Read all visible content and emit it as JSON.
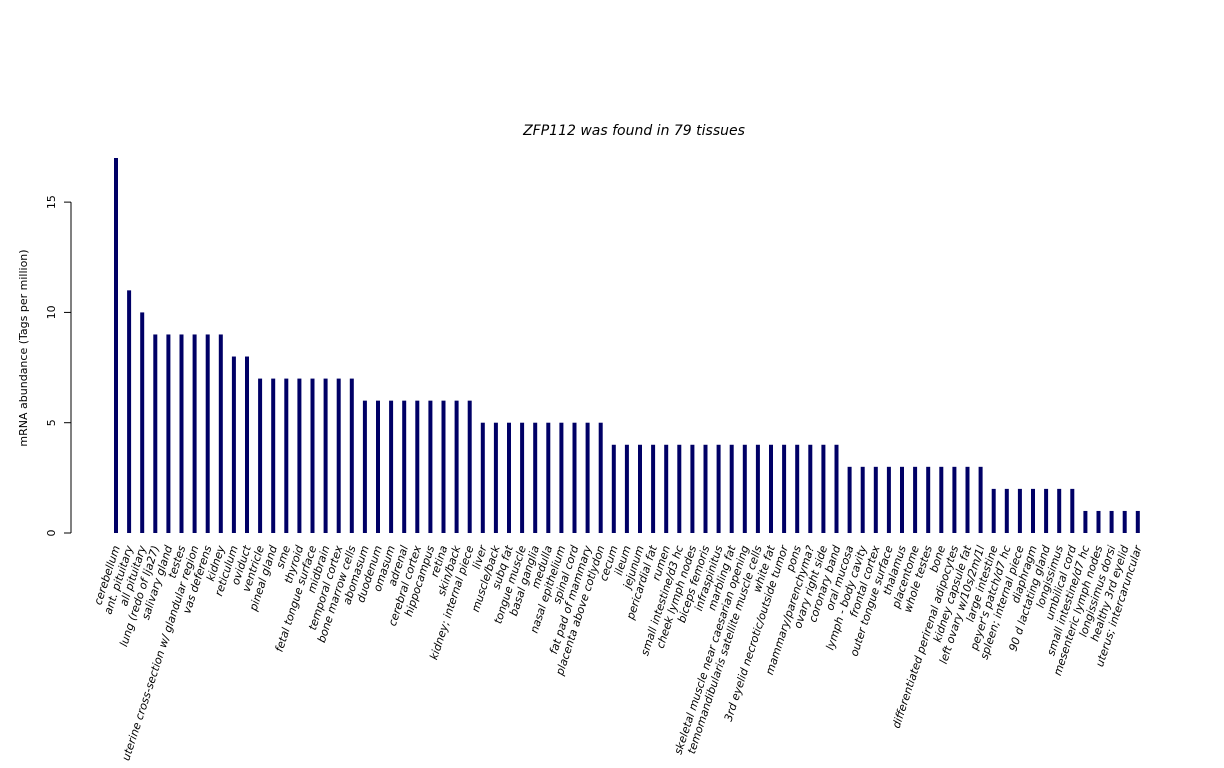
{
  "chart_data": {
    "type": "bar",
    "title": "ZFP112  was found in  79  tissues",
    "xlabel": "",
    "ylabel": "mRNA abundance (Tags per million)",
    "ylim": [
      0,
      17
    ],
    "yticks": [
      0,
      5,
      10,
      15
    ],
    "grid": false,
    "legend": "none",
    "bar_color": "#000066",
    "categories": [
      "cerebellum",
      "ant. pituitary",
      "all pituitary",
      "lung (redo of lja27)",
      "salivary gland",
      "testes",
      "uterine cross-section w/ glandular region",
      "vas deferens",
      "kidney",
      "reticulum",
      "oviduct",
      "ventricle",
      "pineal gland",
      "sme",
      "thyroid",
      "fetal tongue surface",
      "midbrain",
      "temporal cortex",
      "bone marrow cells",
      "abomasum",
      "duodenum",
      "omasum",
      "adrenal",
      "cerebral cortex",
      "hippocampus",
      "retina",
      "skin/back",
      "kidney; internal piece",
      "liver",
      "muscle/back",
      "subq fat",
      "tongue muscle",
      "basal ganglia",
      "medulla",
      "nasal epithelium",
      "spinal cord",
      "fat pad of mammary",
      "placenta above cotlydon",
      "cecum",
      "ileum",
      "jejunum",
      "pericardial fat",
      "rumen",
      "small intestine/d3 hc",
      "cheek lymph nodes",
      "biceps femoris",
      "infraspinitus",
      "marbling fat",
      "skeletal muscle near caesarian opening",
      "temomandibularis satellite muscle cells",
      "white fat",
      "3rd eyelid necrotic/outside tumor",
      "pons",
      "mammary/parenchyma?",
      "ovary right side",
      "coronary band",
      "oral mucosa",
      "lymph - body cavity",
      "frontal cortex",
      "outer tongue surface",
      "thalamus",
      "placentome",
      "whole testes",
      "bone",
      "differentiated perirenal adipocytes",
      "kidney capsule fat",
      "left ovary w/10s/2m/1l",
      "large intestine",
      "peyer's patch/d7 hc",
      "spleen; internal piece",
      "diaphragm",
      "90 d lactating gland",
      "longissimus",
      "umbilical cord",
      "small intestine/d7 hc",
      "mesenteric lymph nodes",
      "longissimus dorsi",
      "healthy 3rd eyelid",
      "uterus; intercaruncular"
    ],
    "values": [
      17,
      11,
      10,
      9,
      9,
      9,
      9,
      9,
      9,
      8,
      8,
      7,
      7,
      7,
      7,
      7,
      7,
      7,
      7,
      6,
      6,
      6,
      6,
      6,
      6,
      6,
      6,
      6,
      5,
      5,
      5,
      5,
      5,
      5,
      5,
      5,
      5,
      5,
      4,
      4,
      4,
      4,
      4,
      4,
      4,
      4,
      4,
      4,
      4,
      4,
      4,
      4,
      4,
      4,
      4,
      4,
      3,
      3,
      3,
      3,
      3,
      3,
      3,
      3,
      3,
      3,
      3,
      2,
      2,
      2,
      2,
      2,
      2,
      2,
      1,
      1,
      1,
      1,
      1
    ]
  }
}
